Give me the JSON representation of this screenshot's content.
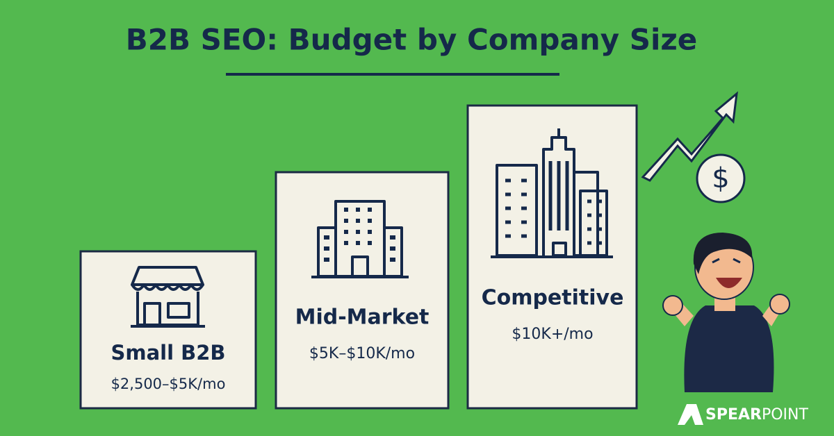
{
  "header": {
    "title": "B2B SEO: Budget by Company Size"
  },
  "tiers": [
    {
      "name": "Small B2B",
      "price": "$2,500–$5K/mo"
    },
    {
      "name": "Mid-Market",
      "price": "$5K–$10K/mo"
    },
    {
      "name": "Competitive",
      "price": "$10K+/mo"
    }
  ],
  "dollar_icon": "$",
  "logo": {
    "first": "SPEAR",
    "second": "POINT"
  }
}
